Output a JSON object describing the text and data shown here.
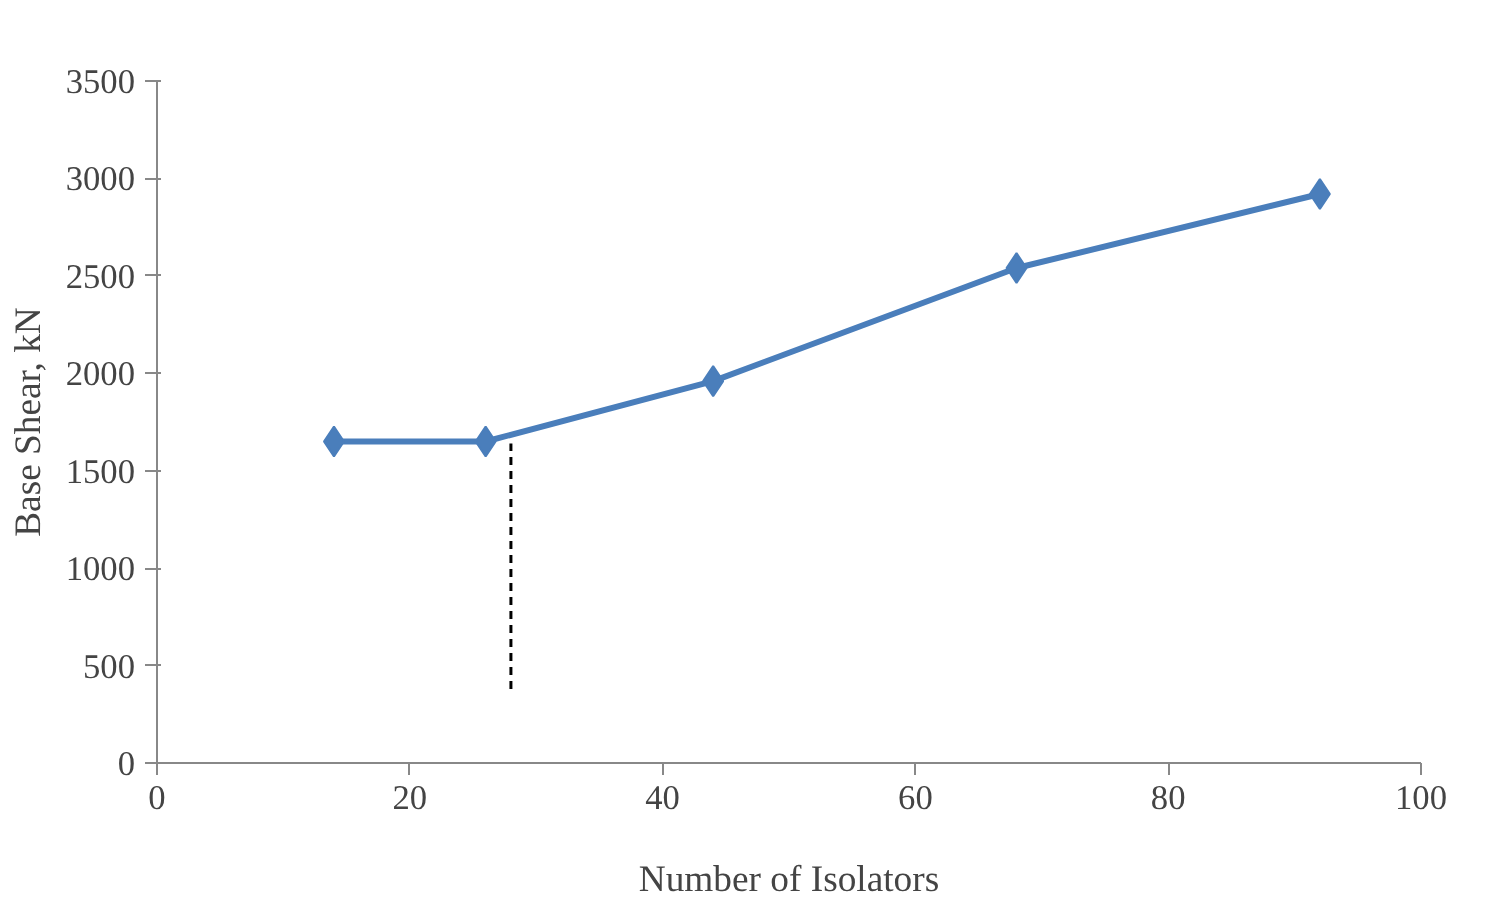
{
  "chart_data": {
    "type": "line",
    "xlabel": "Number of Isolators",
    "ylabel": "Base Shear, kN",
    "x": [
      14,
      26,
      44,
      68,
      92
    ],
    "series": [
      {
        "color": "#4a7ebb",
        "values": [
          1650,
          1650,
          1960,
          2540,
          2920
        ],
        "marker": "diamond"
      },
      {
        "type": "line",
        "x": [
          28,
          28
        ],
        "values": [
          380,
          1640
        ],
        "color": "#000000",
        "line_style": "dashed",
        "marker": "none"
      }
    ],
    "xlim": [
      0,
      100
    ],
    "xticks": [
      0,
      20,
      40,
      60,
      80,
      100
    ],
    "ylim": [
      0,
      3500
    ],
    "yticks": [
      0,
      500,
      1000,
      1500,
      2000,
      2500,
      3000,
      3500
    ],
    "grid": false
  }
}
